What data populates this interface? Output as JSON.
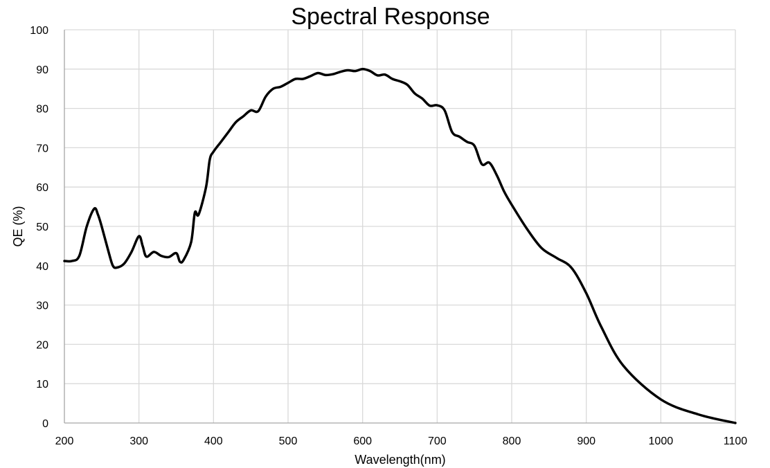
{
  "chart_data": {
    "type": "line",
    "title": "Spectral Response",
    "xlabel": "Wavelength(nm)",
    "ylabel": "QE (%)",
    "xlim": [
      200,
      1100
    ],
    "ylim": [
      0,
      100
    ],
    "x_ticks": [
      200,
      300,
      400,
      500,
      600,
      700,
      800,
      900,
      1000,
      1100
    ],
    "y_ticks": [
      0,
      10,
      20,
      30,
      40,
      50,
      60,
      70,
      80,
      90,
      100
    ],
    "grid": true,
    "legend": "none",
    "series": [
      {
        "color": "#000000",
        "x": [
          200,
          210,
          220,
          230,
          240,
          245,
          250,
          260,
          265,
          270,
          280,
          290,
          300,
          305,
          310,
          320,
          330,
          340,
          350,
          355,
          360,
          370,
          375,
          380,
          390,
          395,
          400,
          410,
          420,
          430,
          440,
          450,
          460,
          470,
          480,
          490,
          500,
          510,
          520,
          530,
          540,
          550,
          560,
          570,
          580,
          590,
          600,
          610,
          620,
          630,
          640,
          650,
          660,
          670,
          680,
          690,
          700,
          710,
          720,
          730,
          740,
          750,
          760,
          770,
          780,
          790,
          800,
          820,
          840,
          860,
          880,
          900,
          920,
          950,
          1000,
          1050,
          1100
        ],
        "y": [
          41.2,
          41.2,
          42.5,
          50,
          54.5,
          53,
          50,
          43,
          40,
          39.5,
          40.5,
          43.5,
          47.5,
          45,
          42.3,
          43.5,
          42.5,
          42.2,
          43.2,
          41,
          41.5,
          46,
          53.5,
          53,
          60,
          67,
          69,
          71.5,
          74,
          76.5,
          78,
          79.5,
          79.3,
          83,
          85,
          85.5,
          86.5,
          87.5,
          87.5,
          88.2,
          89,
          88.5,
          88.7,
          89.3,
          89.7,
          89.5,
          90,
          89.5,
          88.4,
          88.6,
          87.5,
          86.9,
          86,
          83.8,
          82.5,
          80.7,
          80.8,
          79.5,
          74,
          72.8,
          71.5,
          70.5,
          65.8,
          66.2,
          63,
          58.8,
          55.5,
          49.5,
          44.5,
          42,
          39.5,
          33,
          24.5,
          14.5,
          6,
          2.2,
          0
        ]
      }
    ]
  }
}
